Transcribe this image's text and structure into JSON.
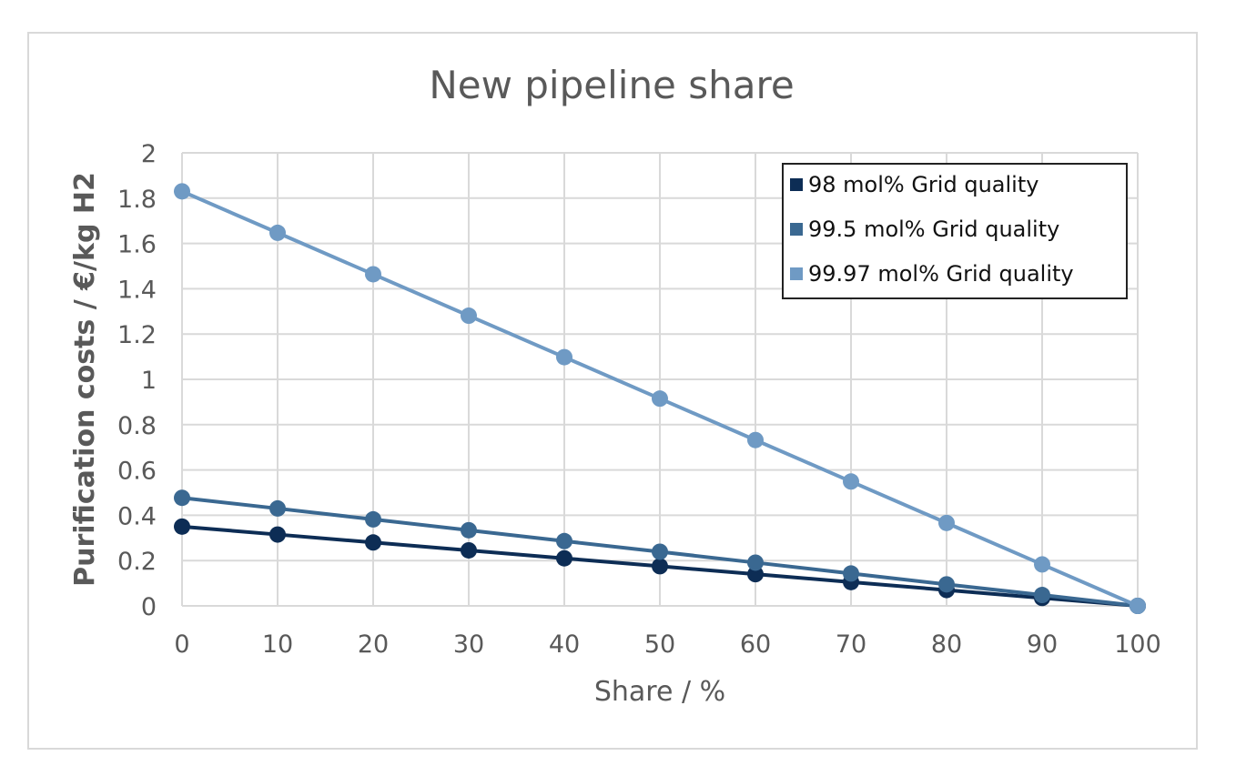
{
  "chart_data": {
    "type": "line",
    "title": "New pipeline share",
    "xlabel": "Share / %",
    "ylabel": "Purification costs / €/kg H2",
    "x": [
      0,
      10,
      20,
      30,
      40,
      50,
      60,
      70,
      80,
      90,
      100
    ],
    "xlim": [
      0,
      100
    ],
    "ylim": [
      0,
      2
    ],
    "xticks": [
      "0",
      "10",
      "20",
      "30",
      "40",
      "50",
      "60",
      "70",
      "80",
      "90",
      "100"
    ],
    "yticks": [
      "0",
      "0.2",
      "0.4",
      "0.6",
      "0.8",
      "1",
      "1.2",
      "1.4",
      "1.6",
      "1.8",
      "2"
    ],
    "grid": true,
    "legend_position": "top-right",
    "series": [
      {
        "name": "98 mol% Grid quality",
        "color": "#0d2d55",
        "values": [
          0.35,
          0.315,
          0.28,
          0.245,
          0.21,
          0.175,
          0.14,
          0.105,
          0.07,
          0.035,
          0
        ]
      },
      {
        "name": "99.5 mol% Grid quality",
        "color": "#3a6891",
        "values": [
          0.477,
          0.43,
          0.382,
          0.334,
          0.286,
          0.239,
          0.191,
          0.143,
          0.095,
          0.048,
          0
        ]
      },
      {
        "name": "99.97 mol% Grid quality",
        "color": "#6f9ac4",
        "values": [
          1.83,
          1.647,
          1.464,
          1.281,
          1.098,
          0.915,
          0.732,
          0.549,
          0.366,
          0.183,
          0
        ]
      }
    ]
  }
}
